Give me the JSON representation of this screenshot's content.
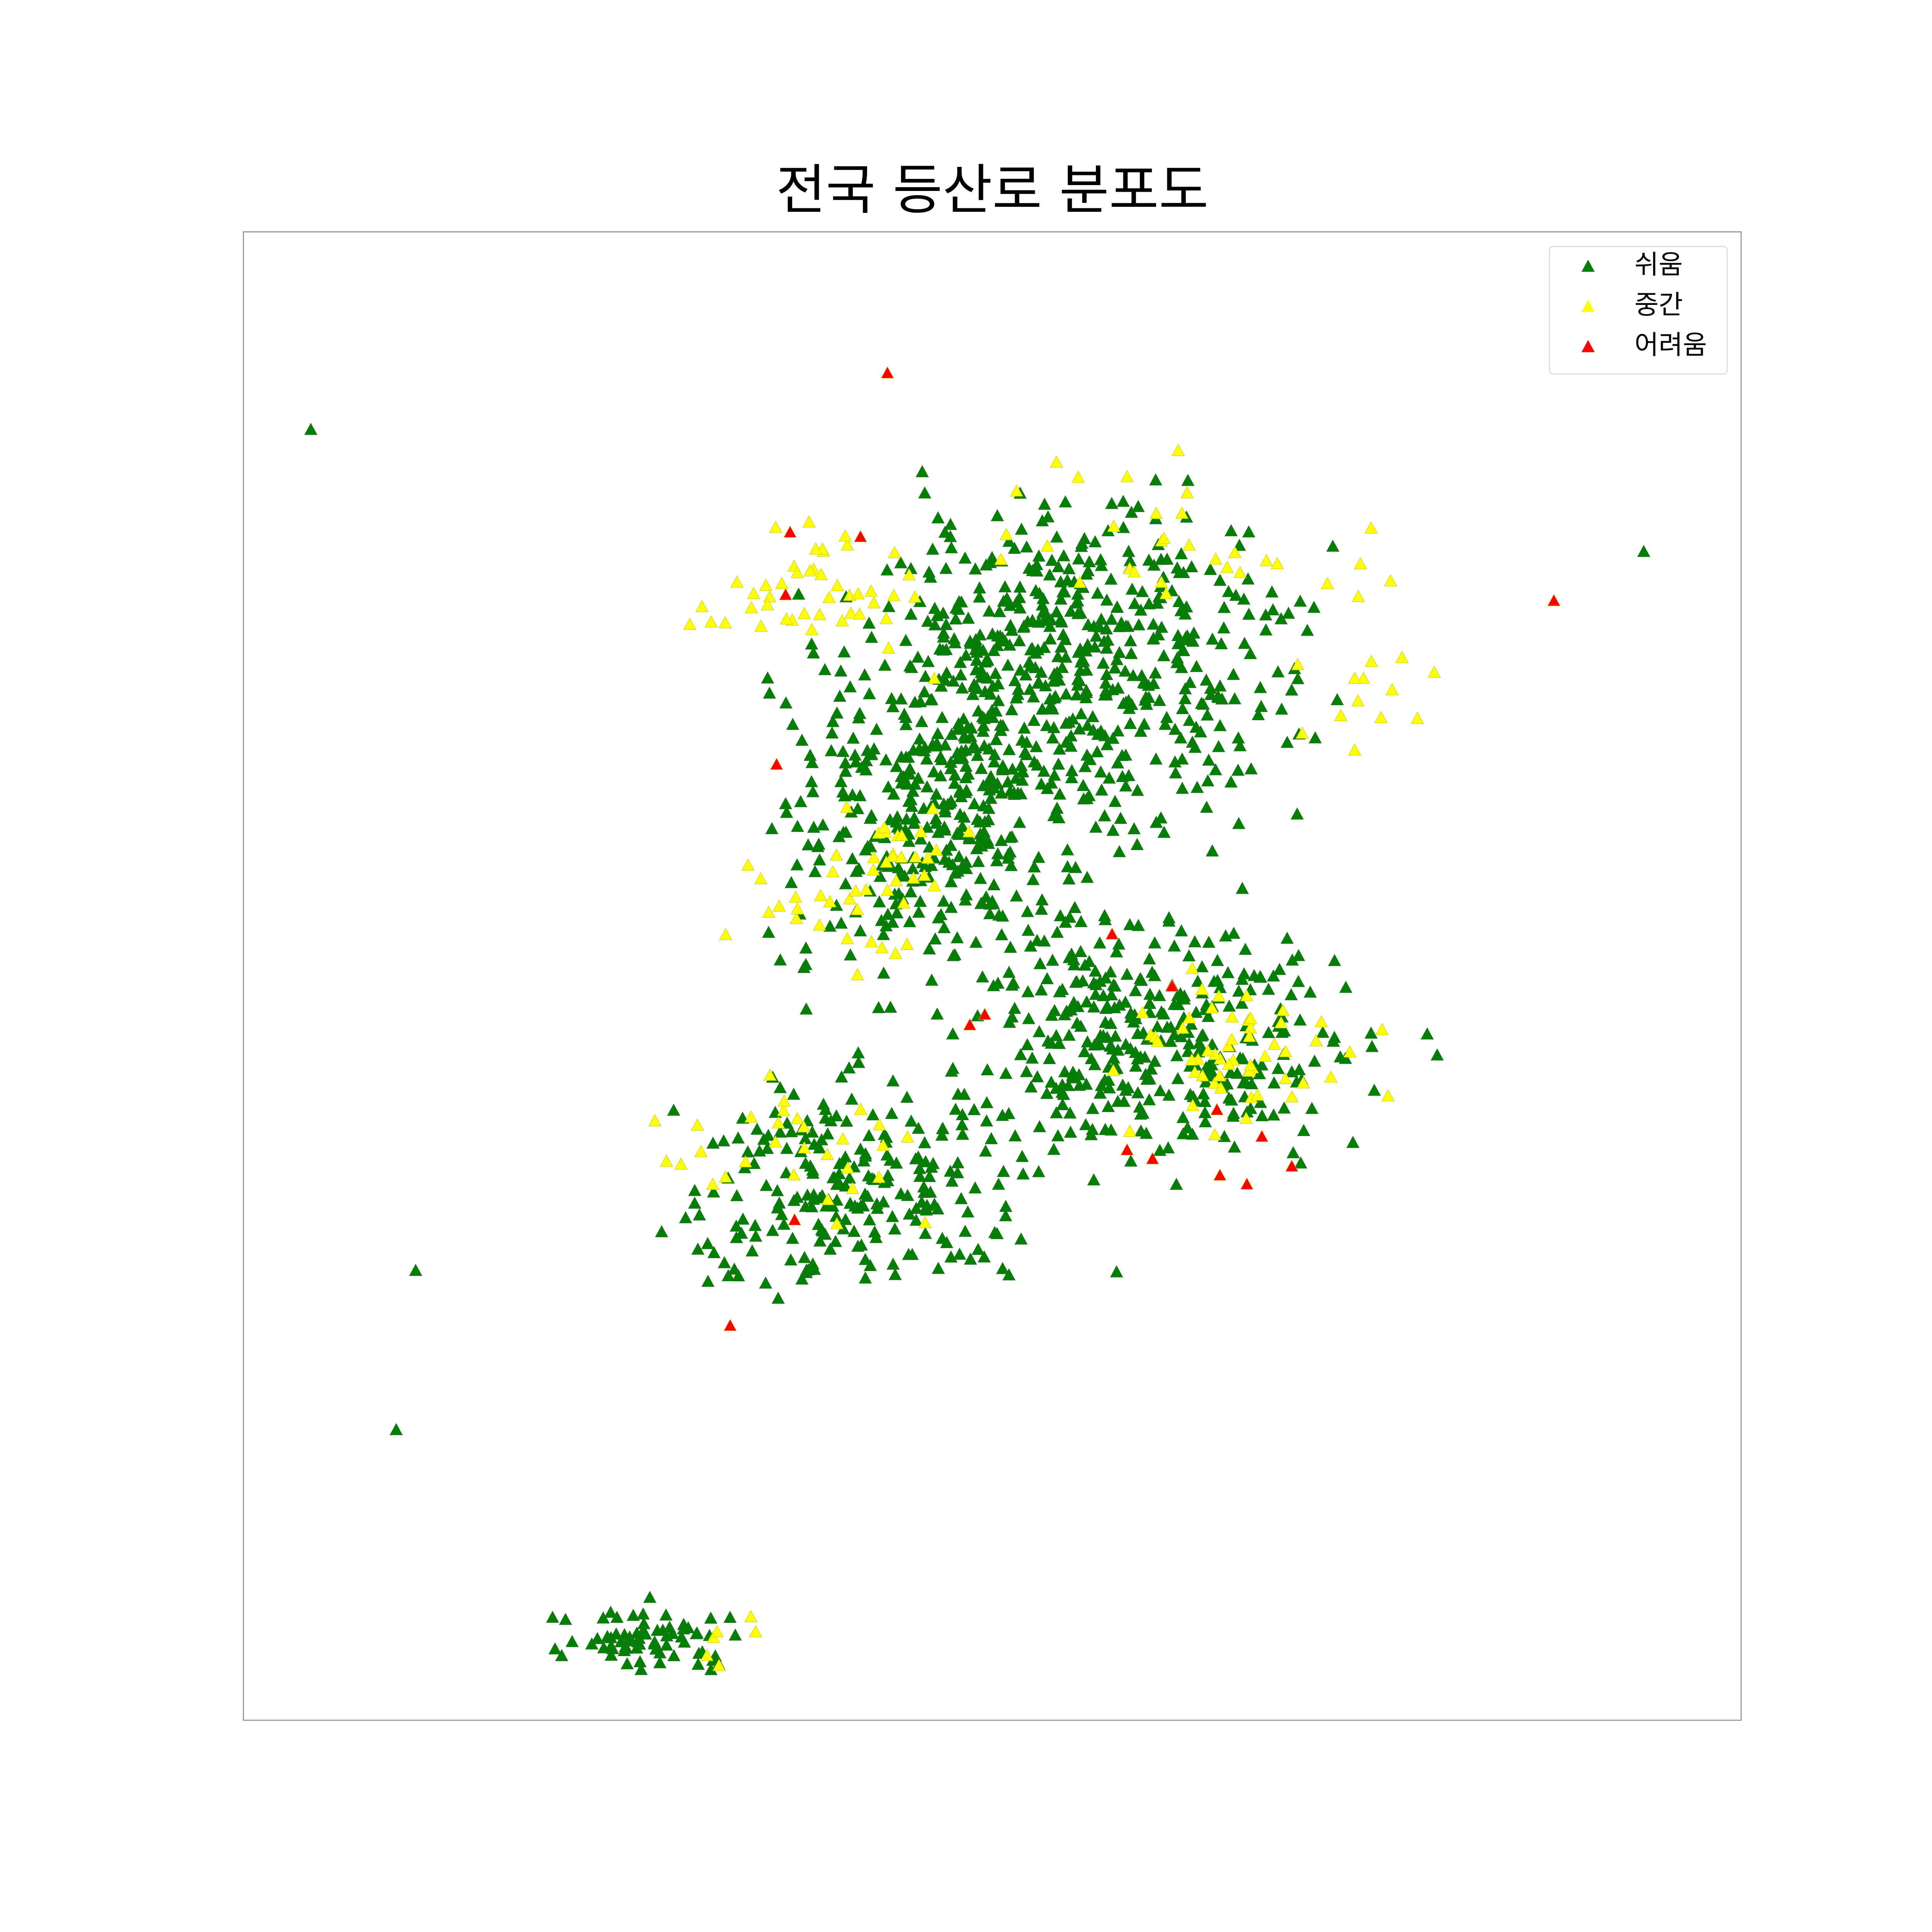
{
  "chart_data": {
    "type": "scatter",
    "title": "전국 등산로 분포도",
    "xlabel": "",
    "ylabel": "",
    "xlim": [
      0,
      100
    ],
    "ylim": [
      0,
      100
    ],
    "axes_ticks": "hidden",
    "grid": false,
    "legend_position": "top-right",
    "marker": "triangle",
    "series": [
      {
        "name": "쉬움",
        "color": "#008000",
        "points": [
          [
            4.5,
            86.7
          ],
          [
            47.2,
            79.5
          ],
          [
            66.8,
            75.3
          ],
          [
            93.5,
            78.5
          ],
          [
            11.5,
            30.2
          ],
          [
            10.2,
            19.5
          ],
          [
            31.0,
            32.0
          ],
          [
            58.3,
            30.1
          ],
          [
            42.9,
            64.5
          ],
          [
            35.0,
            70.0
          ],
          [
            68.0,
            44.0
          ],
          [
            50.0,
            55.0
          ]
        ],
        "clusters": [
          {
            "center": [
              55.5,
              71.0
            ],
            "spread": [
              14,
              10
            ],
            "count": 520
          },
          {
            "center": [
              47.2,
              60.5
            ],
            "spread": [
              11,
              10
            ],
            "count": 340
          },
          {
            "center": [
              60.0,
              46.0
            ],
            "spread": [
              14,
              8
            ],
            "count": 360
          },
          {
            "center": [
              41.0,
              36.0
            ],
            "spread": [
              12,
              7
            ],
            "count": 230
          },
          {
            "center": [
              27.0,
              5.5
            ],
            "spread": [
              6,
              2.2
            ],
            "count": 70
          }
        ]
      },
      {
        "name": "중간",
        "color": "#ffff00",
        "clusters": [
          {
            "center": [
              38.0,
              76.0
            ],
            "spread": [
              7,
              4
            ],
            "count": 45
          },
          {
            "center": [
              43.5,
              58.0
            ],
            "spread": [
              4,
              3
            ],
            "count": 25
          },
          {
            "center": [
              39.0,
              54.0
            ],
            "spread": [
              6,
              4
            ],
            "count": 22
          },
          {
            "center": [
              66.0,
              45.0
            ],
            "spread": [
              7,
              5
            ],
            "count": 55
          },
          {
            "center": [
              36.5,
              38.0
            ],
            "spread": [
              9,
              5
            ],
            "count": 30
          },
          {
            "center": [
              61.0,
              80.0
            ],
            "spread": [
              9,
              6
            ],
            "count": 26
          },
          {
            "center": [
              75.0,
              72.0
            ],
            "spread": [
              5,
              6
            ],
            "count": 18
          },
          {
            "center": [
              31.5,
              5.0
            ],
            "spread": [
              3,
              1.5
            ],
            "count": 6
          }
        ]
      },
      {
        "name": "어려움",
        "color": "#ff0000",
        "points": [
          [
            43.0,
            90.5
          ],
          [
            36.5,
            79.8
          ],
          [
            41.2,
            79.5
          ],
          [
            36.2,
            75.6
          ],
          [
            87.5,
            75.2
          ],
          [
            35.6,
            64.2
          ],
          [
            58.0,
            52.8
          ],
          [
            62.0,
            49.3
          ],
          [
            49.5,
            47.4
          ],
          [
            48.5,
            46.7
          ],
          [
            65.0,
            41.0
          ],
          [
            68.0,
            39.2
          ],
          [
            59.0,
            38.3
          ],
          [
            60.7,
            37.7
          ],
          [
            65.2,
            36.6
          ],
          [
            67.0,
            36.0
          ],
          [
            70.0,
            37.2
          ],
          [
            36.8,
            33.6
          ],
          [
            32.5,
            26.5
          ]
        ]
      }
    ]
  }
}
